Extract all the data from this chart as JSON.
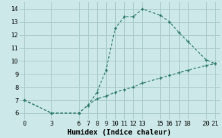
{
  "xlabel": "Humidex (Indice chaleur)",
  "background_color": "#cce8e8",
  "grid_color": "#aacccc",
  "line_color": "#2d7a6a",
  "line1_x": [
    0,
    3,
    6,
    7,
    8,
    9,
    10,
    11,
    12,
    13,
    15,
    16,
    17,
    18,
    20,
    21
  ],
  "line1_y": [
    7.0,
    6.0,
    6.0,
    6.6,
    7.6,
    9.3,
    12.5,
    13.4,
    13.4,
    14.0,
    13.5,
    13.0,
    12.2,
    11.5,
    10.1,
    9.8
  ],
  "line2_x": [
    0,
    3,
    6,
    7,
    8,
    9,
    10,
    11,
    12,
    13,
    15,
    16,
    17,
    18,
    20,
    21
  ],
  "line2_y": [
    7.0,
    6.0,
    6.0,
    6.6,
    7.1,
    7.3,
    7.6,
    7.8,
    8.0,
    8.3,
    8.7,
    8.9,
    9.1,
    9.3,
    9.65,
    9.8
  ],
  "xlim": [
    -0.5,
    21.5
  ],
  "ylim": [
    5.5,
    14.5
  ],
  "xticks": [
    0,
    3,
    6,
    7,
    8,
    9,
    10,
    11,
    12,
    13,
    15,
    16,
    17,
    18,
    20,
    21
  ],
  "yticks": [
    6,
    7,
    8,
    9,
    10,
    11,
    12,
    13,
    14
  ],
  "tick_fontsize": 6.5,
  "label_fontsize": 7.5
}
